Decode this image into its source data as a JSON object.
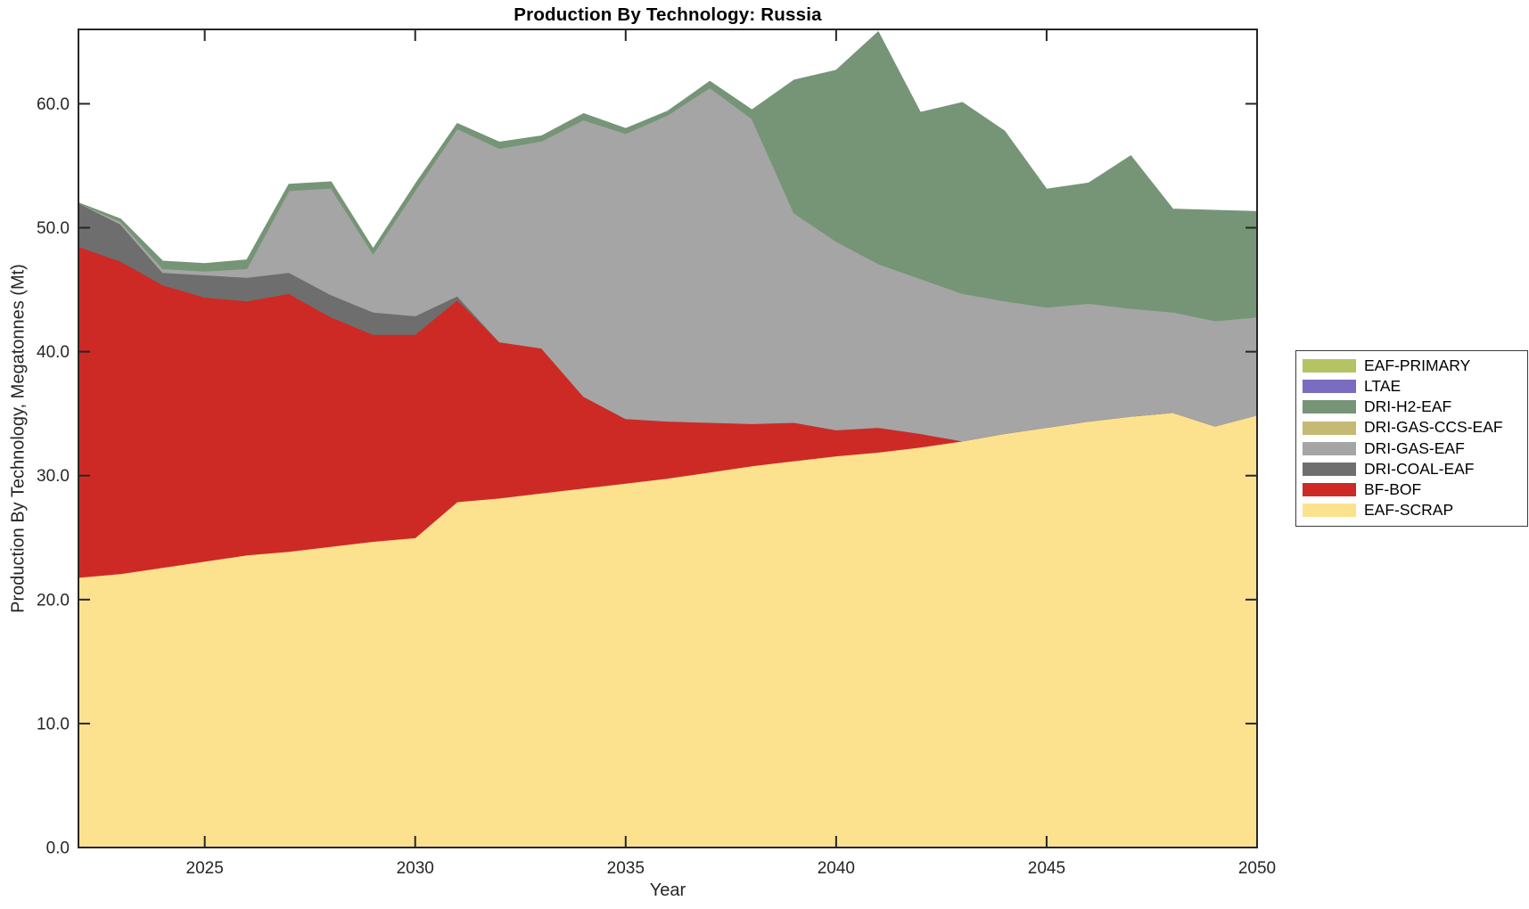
{
  "title": "Production By Technology: Russia",
  "axes": {
    "xlabel": "Year",
    "ylabel": "Production By Technology, Megatonnes (Mt)",
    "x_tick_values": [
      2025,
      2030,
      2035,
      2040,
      2045,
      2050
    ],
    "x_tick_labels": [
      "2025",
      "2030",
      "2035",
      "2040",
      "2045",
      "2050"
    ],
    "y_tick_values": [
      0,
      10,
      20,
      30,
      40,
      50,
      60
    ],
    "y_tick_labels": [
      "0.0",
      "10.0",
      "20.0",
      "30.0",
      "40.0",
      "50.0",
      "60.0"
    ],
    "axis_color": "#262626",
    "background": "#ffffff"
  },
  "legend": {
    "position": "right-outside",
    "entries": [
      {
        "label": "EAF-PRIMARY",
        "color": "#b5c364"
      },
      {
        "label": "LTAE",
        "color": "#7a6cc0"
      },
      {
        "label": "DRI-H2-EAF",
        "color": "#769577"
      },
      {
        "label": "DRI-GAS-CCS-EAF",
        "color": "#c5b974"
      },
      {
        "label": "DRI-GAS-EAF",
        "color": "#a5a5a5"
      },
      {
        "label": "DRI-COAL-EAF",
        "color": "#6e6e6e"
      },
      {
        "label": "BF-BOF",
        "color": "#cd2a26"
      },
      {
        "label": "EAF-SCRAP",
        "color": "#fce28e"
      }
    ]
  },
  "chart_data": {
    "type": "area",
    "stacked": true,
    "title": "Production By Technology: Russia",
    "xlabel": "Year",
    "ylabel": "Production By Technology, Megatonnes (Mt)",
    "xlim": [
      2022,
      2050
    ],
    "ylim": [
      0,
      66
    ],
    "grid": false,
    "legend_position": "right-outside",
    "x": [
      2022,
      2023,
      2024,
      2025,
      2026,
      2027,
      2028,
      2029,
      2030,
      2031,
      2032,
      2033,
      2034,
      2035,
      2036,
      2037,
      2038,
      2039,
      2040,
      2041,
      2042,
      2043,
      2044,
      2045,
      2046,
      2047,
      2048,
      2049,
      2050
    ],
    "series": [
      {
        "name": "EAF-SCRAP",
        "color": "#fce28e",
        "values": [
          21.8,
          22.1,
          22.6,
          23.1,
          23.6,
          23.9,
          24.3,
          24.7,
          25.0,
          27.9,
          28.2,
          28.6,
          29.0,
          29.4,
          29.8,
          30.3,
          30.8,
          31.2,
          31.6,
          31.9,
          32.3,
          32.8,
          33.4,
          33.9,
          34.4,
          34.8,
          35.1,
          34.0,
          34.9
        ]
      },
      {
        "name": "BF-BOF",
        "color": "#cd2a26",
        "values": [
          26.7,
          25.2,
          22.8,
          21.3,
          20.5,
          20.8,
          18.5,
          16.7,
          16.4,
          16.3,
          12.6,
          11.7,
          7.4,
          5.2,
          4.6,
          4.0,
          3.4,
          3.1,
          2.1,
          2.0,
          1.1,
          0,
          0,
          0,
          0,
          0,
          0,
          0,
          0
        ]
      },
      {
        "name": "DRI-COAL-EAF",
        "color": "#6e6e6e",
        "values": [
          3.5,
          3.0,
          1.0,
          1.8,
          1.9,
          1.7,
          1.8,
          1.8,
          1.5,
          0.3,
          0,
          0,
          0,
          0,
          0,
          0,
          0,
          0,
          0,
          0,
          0,
          0,
          0,
          0,
          0,
          0,
          0,
          0,
          0
        ]
      },
      {
        "name": "DRI-GAS-EAF",
        "color": "#a5a5a5",
        "values": [
          0,
          0.2,
          0.3,
          0.3,
          0.7,
          6.6,
          8.6,
          4.7,
          10.1,
          13.5,
          15.6,
          16.7,
          22.3,
          23.0,
          24.7,
          27.0,
          24.6,
          16.9,
          15.2,
          13.2,
          12.5,
          11.9,
          10.7,
          9.7,
          9.5,
          8.7,
          8.1,
          8.5,
          7.9
        ]
      },
      {
        "name": "DRI-GAS-CCS-EAF",
        "color": "#c5b974",
        "values": [
          0,
          0,
          0,
          0,
          0,
          0,
          0,
          0,
          0,
          0,
          0,
          0,
          0,
          0,
          0,
          0,
          0,
          0,
          0,
          0,
          0,
          0,
          0,
          0,
          0,
          0,
          0,
          0,
          0
        ]
      },
      {
        "name": "DRI-H2-EAF",
        "color": "#769577",
        "values": [
          0,
          0.2,
          0.6,
          0.6,
          0.7,
          0.5,
          0.5,
          0.4,
          0.5,
          0.4,
          0.5,
          0.4,
          0.5,
          0.4,
          0.3,
          0.5,
          0.7,
          10.7,
          13.8,
          18.7,
          13.4,
          15.4,
          13.7,
          9.5,
          9.7,
          12.3,
          8.3,
          8.9,
          8.5
        ]
      },
      {
        "name": "LTAE",
        "color": "#7a6cc0",
        "values": [
          0,
          0,
          0,
          0,
          0,
          0,
          0,
          0,
          0,
          0,
          0,
          0,
          0,
          0,
          0,
          0,
          0,
          0,
          0,
          0,
          0,
          0,
          0,
          0,
          0,
          0,
          0,
          0,
          0
        ]
      },
      {
        "name": "EAF-PRIMARY",
        "color": "#b5c364",
        "values": [
          0,
          0,
          0,
          0,
          0,
          0,
          0,
          0,
          0,
          0,
          0,
          0,
          0,
          0,
          0,
          0,
          0,
          0,
          0,
          0,
          0,
          0,
          0,
          0,
          0,
          0,
          0,
          0,
          0
        ]
      }
    ]
  }
}
